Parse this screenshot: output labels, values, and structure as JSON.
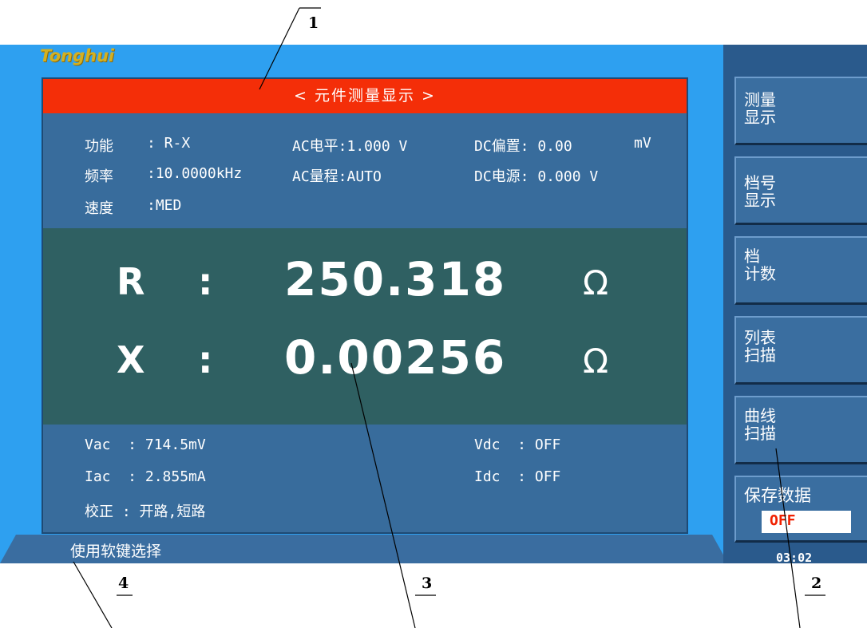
{
  "brand": "Tonghui",
  "title": "< 元件测量显示 >",
  "info": {
    "function_label": "功能",
    "function_value": ": R-X",
    "frequency_label": "频率",
    "frequency_value": ":10.0000kHz",
    "speed_label": "速度",
    "speed_value": ":MED",
    "ac_level": "AC电平:1.000 V",
    "ac_range": "AC量程:AUTO",
    "dc_bias": "DC偏置: 0.00",
    "dc_bias_unit": "mV",
    "dc_source": "DC电源: 0.000 V"
  },
  "measurement": {
    "primary": {
      "param": "R",
      "colon": ":",
      "value": "250.318",
      "unit": "Ω"
    },
    "secondary": {
      "param": "X",
      "colon": ":",
      "value": "0.00256",
      "unit": "Ω"
    }
  },
  "monitor": {
    "vac": "Vac  : 714.5mV",
    "iac": "Iac  : 2.855mA",
    "vdc": "Vdc  : OFF",
    "idc": "Idc  : OFF",
    "correction": "校正 : 开路,短路"
  },
  "status_text": "使用软键选择",
  "softkeys": [
    {
      "line1": "测量",
      "line2": "显示"
    },
    {
      "line1": "档号",
      "line2": "显示"
    },
    {
      "line1": "档",
      "line2": "计数"
    },
    {
      "line1": "列表",
      "line2": "扫描"
    },
    {
      "line1": "曲线",
      "line2": "扫描"
    },
    {
      "line1": "保存数据",
      "line2": ""
    }
  ],
  "save_state": "OFF",
  "clock": "03:02",
  "callouts": [
    "1",
    "2",
    "3",
    "4"
  ]
}
